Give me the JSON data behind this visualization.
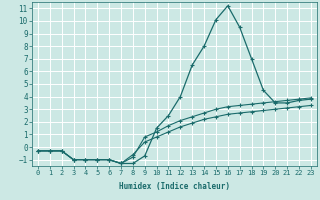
{
  "xlabel": "Humidex (Indice chaleur)",
  "bg_color": "#cce8e4",
  "grid_color": "#ffffff",
  "line_color": "#1a6b6b",
  "xlim": [
    -0.5,
    23.5
  ],
  "ylim": [
    -1.5,
    11.5
  ],
  "xticks": [
    0,
    1,
    2,
    3,
    4,
    5,
    6,
    7,
    8,
    9,
    10,
    11,
    12,
    13,
    14,
    15,
    16,
    17,
    18,
    19,
    20,
    21,
    22,
    23
  ],
  "yticks": [
    -1,
    0,
    1,
    2,
    3,
    4,
    5,
    6,
    7,
    8,
    9,
    10,
    11
  ],
  "curve1_x": [
    0,
    1,
    2,
    3,
    4,
    5,
    6,
    7,
    8,
    9,
    10,
    11,
    12,
    13,
    14,
    15,
    16,
    17,
    18,
    19,
    20,
    21,
    22,
    23
  ],
  "curve1_y": [
    -0.3,
    -0.3,
    -0.3,
    -1.0,
    -1.0,
    -1.0,
    -1.0,
    -1.3,
    -1.3,
    -0.7,
    1.5,
    2.5,
    4.0,
    6.5,
    8.0,
    10.1,
    11.2,
    9.5,
    7.0,
    4.5,
    3.5,
    3.5,
    3.7,
    3.8
  ],
  "curve2_x": [
    0,
    1,
    2,
    3,
    4,
    5,
    6,
    7,
    8,
    9,
    10,
    11,
    12,
    13,
    14,
    15,
    16,
    17,
    18,
    19,
    20,
    21,
    22,
    23
  ],
  "curve2_y": [
    -0.3,
    -0.3,
    -0.3,
    -1.0,
    -1.0,
    -1.0,
    -1.0,
    -1.3,
    -0.8,
    0.8,
    1.2,
    1.7,
    2.1,
    2.4,
    2.7,
    3.0,
    3.2,
    3.3,
    3.4,
    3.5,
    3.6,
    3.7,
    3.8,
    3.9
  ],
  "curve3_x": [
    0,
    1,
    2,
    3,
    4,
    5,
    6,
    7,
    8,
    9,
    10,
    11,
    12,
    13,
    14,
    15,
    16,
    17,
    18,
    19,
    20,
    21,
    22,
    23
  ],
  "curve3_y": [
    -0.3,
    -0.3,
    -0.3,
    -1.0,
    -1.0,
    -1.0,
    -1.0,
    -1.3,
    -0.6,
    0.4,
    0.8,
    1.2,
    1.6,
    1.9,
    2.2,
    2.4,
    2.6,
    2.7,
    2.8,
    2.9,
    3.0,
    3.1,
    3.2,
    3.3
  ]
}
